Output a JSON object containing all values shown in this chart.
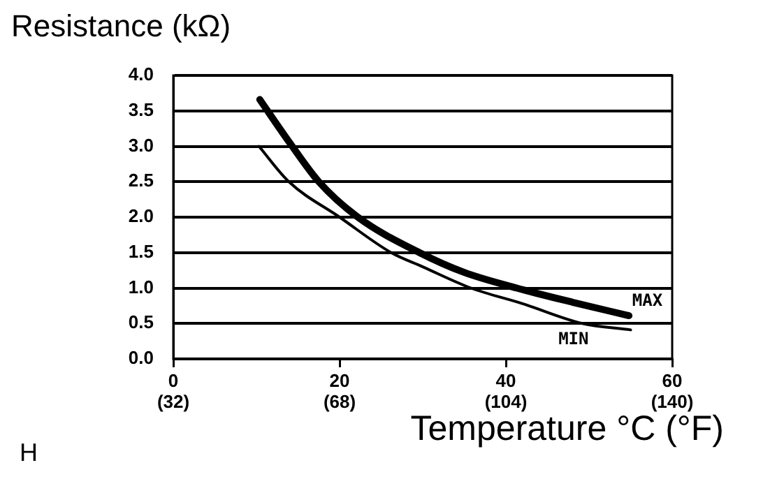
{
  "chart_data": {
    "type": "line",
    "ylabel": "Resistance (kΩ)",
    "xlabel": "Temperature °C (°F)",
    "annotations": [
      "H"
    ],
    "xlim": [
      0,
      60
    ],
    "xticks": [
      0,
      20,
      40,
      60
    ],
    "x2lim": [
      32,
      140
    ],
    "x2ticks": [
      {
        "value": 32,
        "label": "(32)"
      },
      {
        "value": 68,
        "label": "(68)"
      },
      {
        "value": 104,
        "label": "(104)"
      },
      {
        "value": 140,
        "label": "(140)"
      }
    ],
    "ylim": [
      0,
      4
    ],
    "yticks": [
      {
        "value": 0,
        "label": "0.0"
      },
      {
        "value": 0.5,
        "label": "0.5"
      },
      {
        "value": 1,
        "label": "1.0"
      },
      {
        "value": 1.5,
        "label": "1.5"
      },
      {
        "value": 2,
        "label": "2.0"
      },
      {
        "value": 2.5,
        "label": "2.5"
      },
      {
        "value": 3,
        "label": "3.0"
      },
      {
        "value": 3.5,
        "label": "3.5"
      },
      {
        "value": 4,
        "label": "4.0"
      }
    ],
    "grid": "y",
    "legend": false,
    "marker": "none",
    "line_style": "solid",
    "series": [
      {
        "name": "MAX",
        "color": "#000000",
        "x": [
          10.4,
          14,
          17.5,
          22.2,
          29.6,
          35,
          41.3,
          48,
          54.8
        ],
        "values": [
          3.66,
          3.05,
          2.5,
          2.0,
          1.5,
          1.22,
          1.0,
          0.8,
          0.61
        ]
      },
      {
        "name": "MIN",
        "color": "#000000",
        "x": [
          10.3,
          13.9,
          20,
          26.2,
          30,
          35.8,
          42,
          49.2,
          55
        ],
        "values": [
          3.0,
          2.5,
          2.0,
          1.5,
          1.3,
          1.0,
          0.78,
          0.5,
          0.41
        ]
      }
    ]
  }
}
